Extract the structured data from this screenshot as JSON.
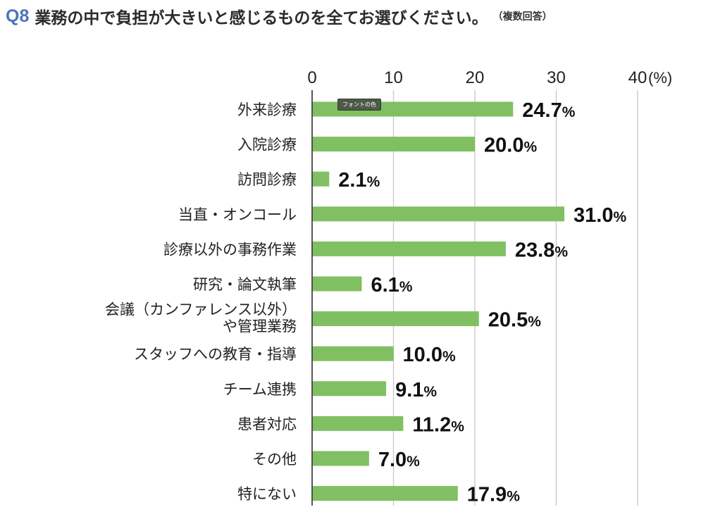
{
  "question": {
    "number": "Q8",
    "text": "業務の中で負担が大きいと感じるものを全てお選びください。",
    "note": "（複数回答）"
  },
  "tooltip": {
    "label": "フォントの色"
  },
  "colors": {
    "bar": "#80c062",
    "grid": "#c8c8c8",
    "axis": "#444444",
    "accent": "#4a76b8"
  },
  "chart_data": {
    "type": "bar",
    "orientation": "horizontal",
    "categories": [
      [
        "外来診療"
      ],
      [
        "入院診療"
      ],
      [
        "訪問診療"
      ],
      [
        "当直・オンコール"
      ],
      [
        "診療以外の事務作業"
      ],
      [
        "研究・論文執筆"
      ],
      [
        "会議（カンファレンス以外）",
        "や管理業務"
      ],
      [
        "スタッフへの教育・指導"
      ],
      [
        "チーム連携"
      ],
      [
        "患者対応"
      ],
      [
        "その他"
      ],
      [
        "特にない"
      ]
    ],
    "values": [
      24.7,
      20.0,
      2.1,
      31.0,
      23.8,
      6.1,
      20.5,
      10.0,
      9.1,
      11.2,
      7.0,
      17.9
    ],
    "value_labels": [
      "24.7",
      "20.0",
      "2.1",
      "31.0",
      "23.8",
      "6.1",
      "20.5",
      "10.0",
      "9.1",
      "11.2",
      "7.0",
      "17.9"
    ],
    "value_unit": "%",
    "x_ticks": [
      "0",
      "10",
      "20",
      "30",
      "40"
    ],
    "x_unit": "(%)",
    "xlim": [
      0,
      40
    ],
    "grid": true,
    "legend": "none"
  }
}
